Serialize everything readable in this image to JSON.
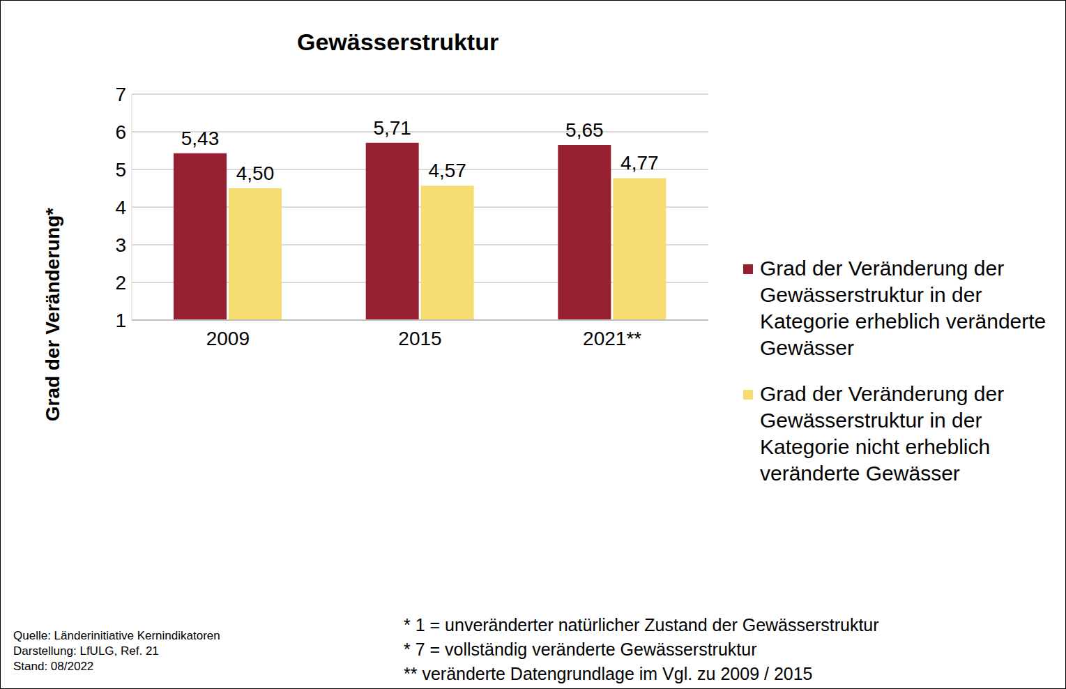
{
  "chart_data": {
    "type": "bar",
    "title": "Gewässerstruktur",
    "y_label": "Grad der Veränderung*",
    "categories": [
      "2009",
      "2015",
      "2021**"
    ],
    "series": [
      {
        "name": "Grad der Veränderung der Gewässerstruktur in der Kategorie erheblich veränderte Gewässer",
        "color": "#971f32",
        "values": [
          5.43,
          5.71,
          5.65
        ],
        "value_labels": [
          "5,43",
          "5,71",
          "5,65"
        ]
      },
      {
        "name": "Grad der Veränderung der Gewässerstruktur in der Kategorie nicht erheblich veränderte Gewässer",
        "color": "#f7dc72",
        "values": [
          4.5,
          4.57,
          4.77
        ],
        "value_labels": [
          "4,50",
          "4,57",
          "4,77"
        ]
      }
    ],
    "ylim": [
      1,
      7
    ],
    "yticks": [
      1,
      2,
      3,
      4,
      5,
      6,
      7
    ],
    "grid": true,
    "legend": "right",
    "data_labels": true,
    "annotations": [
      "* 1 = unveränderter natürlicher Zustand der Gewässerstruktur",
      "* 7 = vollständig veränderte Gewässerstruktur",
      "** veränderte Datengrundlage im Vgl. zu 2009 / 2015"
    ],
    "source": [
      "Quelle: Länderinitiative Kernindikatoren",
      "Darstellung: LfULG, Ref. 21",
      "Stand: 08/2022"
    ]
  }
}
